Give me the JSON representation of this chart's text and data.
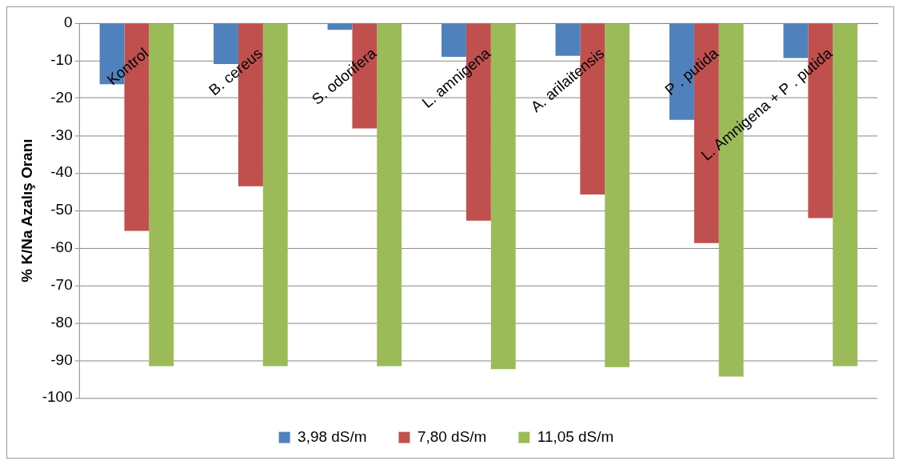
{
  "chart_data": {
    "type": "bar",
    "ylabel": "% K/Na Azalış Oranı",
    "categories": [
      "Kontrol",
      "B. cereus",
      "S. odorifera",
      "L. amnigena",
      "A. arilaitensis",
      "P . putida",
      "L. Amnigena + P . putida"
    ],
    "series": [
      {
        "name": "3,98 dS/m",
        "color": "#4f81bd",
        "values": [
          -16.3,
          -10.9,
          -1.8,
          -9.0,
          -8.7,
          -25.8,
          -9.3
        ]
      },
      {
        "name": "7,80 dS/m",
        "color": "#c0504d",
        "values": [
          -55.4,
          -43.5,
          -28.1,
          -52.7,
          -45.7,
          -58.7,
          -52.0
        ]
      },
      {
        "name": "11,05 dS/m",
        "color": "#9bbb59",
        "values": [
          -91.5,
          -91.5,
          -91.5,
          -92.3,
          -91.8,
          -94.3,
          -91.5
        ]
      }
    ],
    "ylim": [
      -100,
      0
    ],
    "yticks": [
      0,
      -10,
      -20,
      -30,
      -40,
      -50,
      -60,
      -70,
      -80,
      -90,
      -100
    ],
    "grid": "y",
    "legend": "bottom"
  }
}
